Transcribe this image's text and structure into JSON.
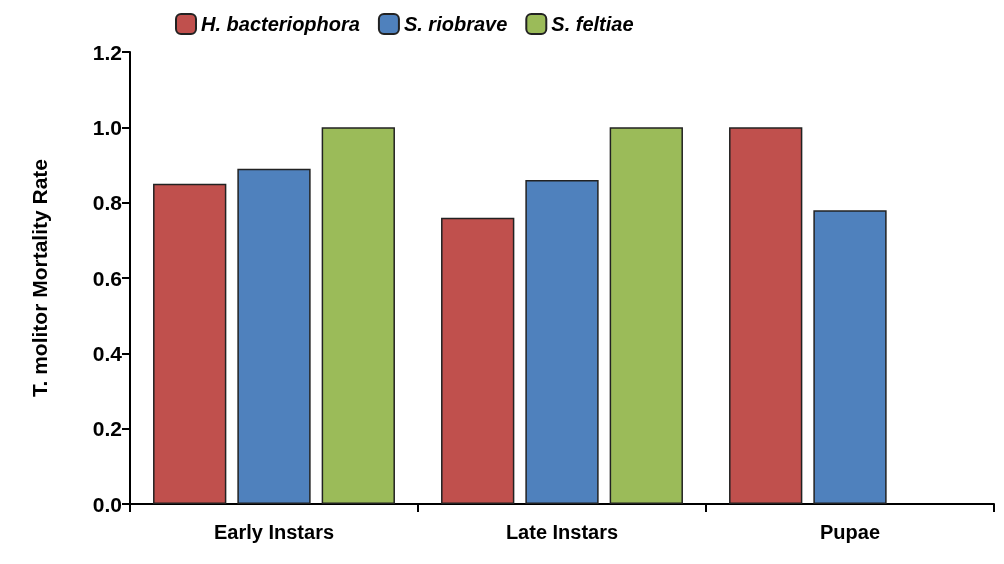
{
  "chart_data": {
    "type": "bar",
    "ylabel": "T. molitor Mortality Rate",
    "categories": [
      "Early Instars",
      "Late Instars",
      "Pupae"
    ],
    "series": [
      {
        "name": "H. bacteriophora",
        "color": "#c0504d",
        "values": [
          0.85,
          0.76,
          1.0
        ]
      },
      {
        "name": "S. riobrave",
        "color": "#4f81bd",
        "values": [
          0.89,
          0.86,
          0.78
        ]
      },
      {
        "name": "S. feltiae",
        "color": "#9bbb59",
        "values": [
          1.0,
          1.0,
          null
        ]
      }
    ],
    "ylim": [
      0,
      1.2
    ],
    "yticks": [
      {
        "value": 0,
        "label": "0.0"
      },
      {
        "value": 0.2,
        "label": "0.2"
      },
      {
        "value": 0.4,
        "label": "0.4"
      },
      {
        "value": 0.6,
        "label": "0.6"
      },
      {
        "value": 0.8,
        "label": "0.8"
      },
      {
        "value": 1.0,
        "label": "1.0"
      },
      {
        "value": 1.2,
        "label": "1.2"
      }
    ],
    "grid": false,
    "legend": "top left"
  }
}
